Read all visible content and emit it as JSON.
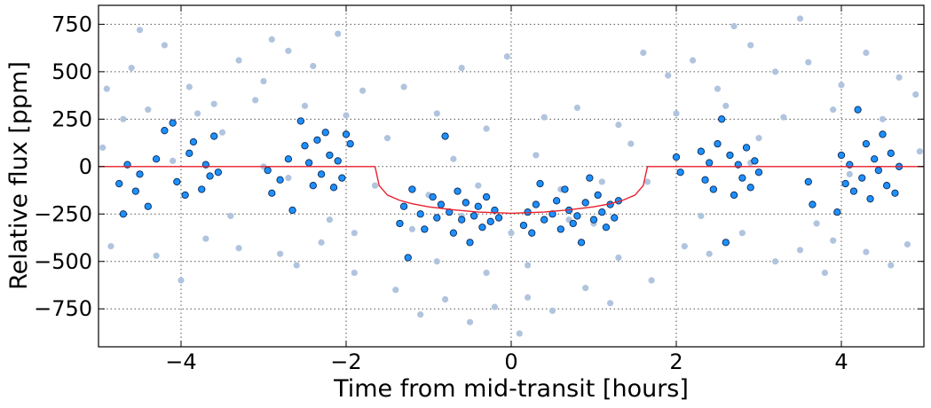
{
  "chart_data": {
    "type": "scatter",
    "title": "",
    "xlabel": "Time from mid-transit [hours]",
    "ylabel": "Relative flux [ppm]",
    "xlim": [
      -5,
      5
    ],
    "ylim": [
      -950,
      850
    ],
    "xticks": [
      -4,
      -2,
      0,
      2,
      4
    ],
    "yticks": [
      -750,
      -500,
      -250,
      0,
      250,
      500,
      750
    ],
    "xtick_labels": [
      "−4",
      "−2",
      "0",
      "2",
      "4"
    ],
    "ytick_labels": [
      "−750",
      "−500",
      "−250",
      "0",
      "250",
      "500",
      "750"
    ],
    "grid": true,
    "legend": "none",
    "colors": {
      "raw": "#b0c4de",
      "binned_fill": "#1e90ff",
      "binned_edge": "#0a2a55",
      "model": "#e8202e",
      "grid": "#555555"
    },
    "series": [
      {
        "style": "raw",
        "points": [
          [
            -4.9,
            410
          ],
          [
            -4.6,
            520
          ],
          [
            -4.2,
            640
          ],
          [
            -3.9,
            420
          ],
          [
            -3.6,
            330
          ],
          [
            -3.3,
            560
          ],
          [
            -3.0,
            450
          ],
          [
            -2.7,
            610
          ],
          [
            -2.4,
            530
          ],
          [
            -2.1,
            700
          ],
          [
            -1.8,
            400
          ],
          [
            -4.7,
            250
          ],
          [
            -4.4,
            300
          ],
          [
            -3.8,
            280
          ],
          [
            -3.1,
            350
          ],
          [
            -2.5,
            320
          ],
          [
            -2.0,
            270
          ],
          [
            -4.85,
            -420
          ],
          [
            -4.3,
            -470
          ],
          [
            -3.7,
            -380
          ],
          [
            -3.3,
            -430
          ],
          [
            -2.8,
            -460
          ],
          [
            -2.3,
            -400
          ],
          [
            -1.9,
            -350
          ],
          [
            -1.4,
            -650
          ],
          [
            -1.1,
            -780
          ],
          [
            -0.8,
            -700
          ],
          [
            -0.5,
            -820
          ],
          [
            -0.2,
            -740
          ],
          [
            0.2,
            -690
          ],
          [
            0.5,
            -760
          ],
          [
            0.9,
            -640
          ],
          [
            1.2,
            -720
          ],
          [
            -1.3,
            420
          ],
          [
            -0.9,
            280
          ],
          [
            -0.6,
            520
          ],
          [
            -0.3,
            200
          ],
          [
            0.4,
            260
          ],
          [
            0.8,
            310
          ],
          [
            1.3,
            220
          ],
          [
            1.6,
            600
          ],
          [
            1.9,
            480
          ],
          [
            2.2,
            560
          ],
          [
            2.5,
            410
          ],
          [
            2.9,
            640
          ],
          [
            3.2,
            500
          ],
          [
            3.6,
            550
          ],
          [
            4.0,
            430
          ],
          [
            4.3,
            600
          ],
          [
            4.7,
            470
          ],
          [
            4.9,
            380
          ],
          [
            2.0,
            280
          ],
          [
            2.6,
            320
          ],
          [
            3.3,
            260
          ],
          [
            3.9,
            300
          ],
          [
            4.5,
            250
          ],
          [
            2.1,
            -420
          ],
          [
            2.4,
            -460
          ],
          [
            2.8,
            -350
          ],
          [
            3.2,
            -500
          ],
          [
            3.5,
            -440
          ],
          [
            3.9,
            -390
          ],
          [
            4.3,
            -450
          ],
          [
            4.8,
            -410
          ],
          [
            -0.05,
            580
          ],
          [
            0.1,
            -880
          ],
          [
            -1.0,
            -150
          ],
          [
            -0.4,
            -100
          ],
          [
            0.6,
            -120
          ],
          [
            1.1,
            -80
          ],
          [
            -4.0,
            -600
          ],
          [
            3.8,
            -560
          ],
          [
            -2.6,
            -520
          ],
          [
            1.7,
            -600
          ],
          [
            -0.7,
            40
          ],
          [
            0.3,
            60
          ],
          [
            -1.5,
            150
          ],
          [
            1.45,
            120
          ],
          [
            -4.5,
            720
          ],
          [
            3.5,
            780
          ],
          [
            -2.9,
            670
          ],
          [
            2.7,
            740
          ],
          [
            -1.9,
            -560
          ],
          [
            4.6,
            -520
          ],
          [
            -3.5,
            180
          ],
          [
            3.0,
            150
          ],
          [
            -4.95,
            100
          ],
          [
            4.95,
            80
          ],
          [
            -2.2,
            -280
          ],
          [
            2.3,
            -260
          ],
          [
            -3.4,
            -260
          ],
          [
            3.7,
            -300
          ],
          [
            -1.2,
            -330
          ],
          [
            0.0,
            -350
          ],
          [
            1.0,
            -300
          ],
          [
            -0.6,
            -260
          ],
          [
            0.7,
            -280
          ],
          [
            -4.1,
            30
          ],
          [
            4.1,
            -40
          ],
          [
            -2.7,
            -60
          ],
          [
            2.9,
            20
          ],
          [
            -3.0,
            0
          ],
          [
            -1.65,
            -100
          ],
          [
            1.65,
            -80
          ],
          [
            -0.9,
            -500
          ],
          [
            0.2,
            -520
          ],
          [
            1.3,
            -480
          ],
          [
            -0.3,
            -560
          ]
        ]
      },
      {
        "style": "binned",
        "points": [
          [
            -4.75,
            -90
          ],
          [
            -4.7,
            -250
          ],
          [
            -4.65,
            10
          ],
          [
            -4.55,
            -130
          ],
          [
            -4.5,
            -40
          ],
          [
            -4.4,
            -210
          ],
          [
            -4.3,
            40
          ],
          [
            -4.2,
            190
          ],
          [
            -4.1,
            230
          ],
          [
            -4.05,
            -80
          ],
          [
            -3.95,
            -150
          ],
          [
            -3.9,
            70
          ],
          [
            -3.85,
            130
          ],
          [
            -3.75,
            -120
          ],
          [
            -3.7,
            10
          ],
          [
            -3.65,
            -50
          ],
          [
            -3.6,
            160
          ],
          [
            -3.55,
            -30
          ],
          [
            -2.95,
            -20
          ],
          [
            -2.9,
            -140
          ],
          [
            -2.8,
            -70
          ],
          [
            -2.7,
            40
          ],
          [
            -2.65,
            -230
          ],
          [
            -2.55,
            240
          ],
          [
            -2.5,
            110
          ],
          [
            -2.45,
            20
          ],
          [
            -2.4,
            -100
          ],
          [
            -2.35,
            140
          ],
          [
            -2.3,
            -40
          ],
          [
            -2.25,
            180
          ],
          [
            -2.2,
            60
          ],
          [
            -2.15,
            -110
          ],
          [
            -2.1,
            30
          ],
          [
            -2.05,
            -60
          ],
          [
            -2.0,
            170
          ],
          [
            -1.95,
            120
          ],
          [
            -1.35,
            -300
          ],
          [
            -1.3,
            -210
          ],
          [
            -1.25,
            -480
          ],
          [
            -1.2,
            -120
          ],
          [
            -1.1,
            -250
          ],
          [
            -1.05,
            -330
          ],
          [
            -0.95,
            -160
          ],
          [
            -0.9,
            -270
          ],
          [
            -0.85,
            -200
          ],
          [
            -0.8,
            160
          ],
          [
            -0.75,
            -240
          ],
          [
            -0.7,
            -350
          ],
          [
            -0.65,
            -130
          ],
          [
            -0.6,
            -280
          ],
          [
            -0.55,
            -190
          ],
          [
            -0.5,
            -400
          ],
          [
            -0.45,
            -260
          ],
          [
            -0.4,
            -210
          ],
          [
            -0.35,
            -320
          ],
          [
            -0.3,
            -160
          ],
          [
            -0.25,
            -290
          ],
          [
            -0.2,
            -230
          ],
          [
            -0.15,
            -270
          ],
          [
            0.15,
            -310
          ],
          [
            0.2,
            -240
          ],
          [
            0.25,
            -350
          ],
          [
            0.3,
            -200
          ],
          [
            0.35,
            -90
          ],
          [
            0.4,
            -280
          ],
          [
            0.5,
            -250
          ],
          [
            0.55,
            -180
          ],
          [
            0.6,
            -330
          ],
          [
            0.65,
            -120
          ],
          [
            0.7,
            -230
          ],
          [
            0.75,
            -300
          ],
          [
            0.8,
            -260
          ],
          [
            0.85,
            -400
          ],
          [
            0.9,
            -190
          ],
          [
            0.95,
            -60
          ],
          [
            1.0,
            -280
          ],
          [
            1.05,
            -150
          ],
          [
            1.1,
            -240
          ],
          [
            1.15,
            -320
          ],
          [
            1.2,
            -200
          ],
          [
            1.25,
            -270
          ],
          [
            1.3,
            -180
          ],
          [
            2.0,
            50
          ],
          [
            2.05,
            -30
          ],
          [
            2.3,
            80
          ],
          [
            2.35,
            -70
          ],
          [
            2.4,
            20
          ],
          [
            2.45,
            -120
          ],
          [
            2.5,
            120
          ],
          [
            2.55,
            250
          ],
          [
            2.6,
            -400
          ],
          [
            2.65,
            60
          ],
          [
            2.7,
            -150
          ],
          [
            2.75,
            10
          ],
          [
            2.8,
            -60
          ],
          [
            2.85,
            100
          ],
          [
            2.9,
            -110
          ],
          [
            2.95,
            30
          ],
          [
            3.0,
            -30
          ],
          [
            3.6,
            -80
          ],
          [
            3.65,
            -200
          ],
          [
            3.95,
            -240
          ],
          [
            4.0,
            60
          ],
          [
            4.05,
            -90
          ],
          [
            4.1,
            10
          ],
          [
            4.15,
            -130
          ],
          [
            4.2,
            300
          ],
          [
            4.25,
            -60
          ],
          [
            4.3,
            120
          ],
          [
            4.35,
            -170
          ],
          [
            4.4,
            40
          ],
          [
            4.45,
            -20
          ],
          [
            4.5,
            170
          ],
          [
            4.55,
            -100
          ],
          [
            4.6,
            70
          ],
          [
            4.65,
            -140
          ],
          [
            4.7,
            0
          ]
        ]
      }
    ],
    "model": {
      "x": [
        -5,
        -1.65,
        -1.6,
        -1.5,
        -1.35,
        -1.2,
        -1.0,
        -0.7,
        -0.4,
        0,
        0.4,
        0.7,
        1.0,
        1.2,
        1.35,
        1.5,
        1.6,
        1.65,
        5
      ],
      "y": [
        0,
        0,
        -100,
        -150,
        -178,
        -196,
        -212,
        -228,
        -240,
        -246,
        -240,
        -228,
        -212,
        -196,
        -178,
        -150,
        -100,
        0,
        0
      ]
    }
  }
}
